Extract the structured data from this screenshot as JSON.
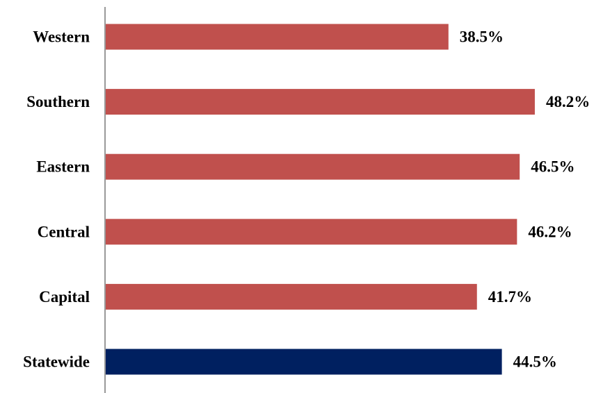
{
  "chart_data": {
    "type": "bar",
    "orientation": "horizontal",
    "categories": [
      "Western",
      "Southern",
      "Eastern",
      "Central",
      "Capital",
      "Statewide"
    ],
    "values": [
      38.5,
      48.2,
      46.5,
      46.2,
      41.7,
      44.5
    ],
    "value_labels": [
      "38.5%",
      "48.2%",
      "46.5%",
      "46.2%",
      "41.7%",
      "44.5%"
    ],
    "value_unit": "%",
    "xlim": [
      0,
      50
    ],
    "grid": false,
    "legend": "none",
    "colors": {
      "regions": "#c0504d",
      "statewide": "#002060",
      "axis": "#999999"
    },
    "highlight_category": "Statewide"
  }
}
